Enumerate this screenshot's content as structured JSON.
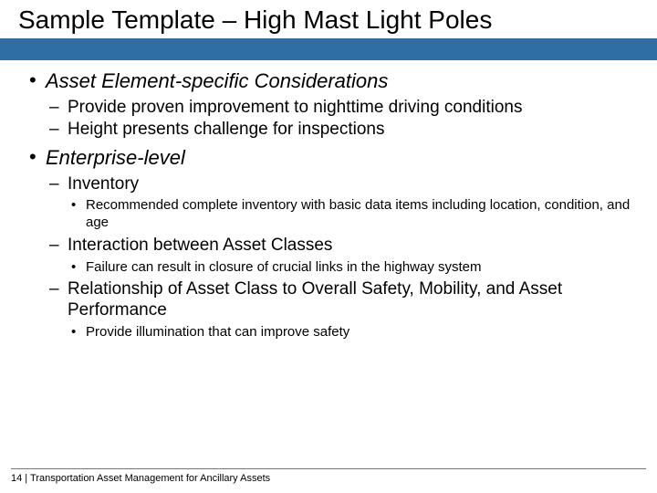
{
  "colors": {
    "blue_bar": "#2f6ea5",
    "background": "#ffffff",
    "text": "#000000",
    "rule": "#777777"
  },
  "title": "Sample Template – High Mast Light Poles",
  "bullets": [
    {
      "text": "Asset Element-specific Considerations",
      "children": [
        {
          "text": "Provide proven improvement to nighttime driving conditions"
        },
        {
          "text": "Height presents challenge for inspections"
        }
      ]
    },
    {
      "text": "Enterprise-level",
      "children": [
        {
          "text": "Inventory",
          "children": [
            {
              "text": "Recommended complete inventory with basic data items including location, condition, and age"
            }
          ]
        },
        {
          "text": "Interaction between Asset Classes",
          "children": [
            {
              "text": "Failure can result in closure of crucial links in the highway system"
            }
          ]
        },
        {
          "text": "Relationship of Asset Class to Overall Safety, Mobility, and Asset Performance",
          "children": [
            {
              "text": "Provide illumination that can improve safety"
            }
          ]
        }
      ]
    }
  ],
  "footer": {
    "page_number": "14",
    "separator": " | ",
    "label": "Transportation Asset Management for Ancillary Assets"
  }
}
